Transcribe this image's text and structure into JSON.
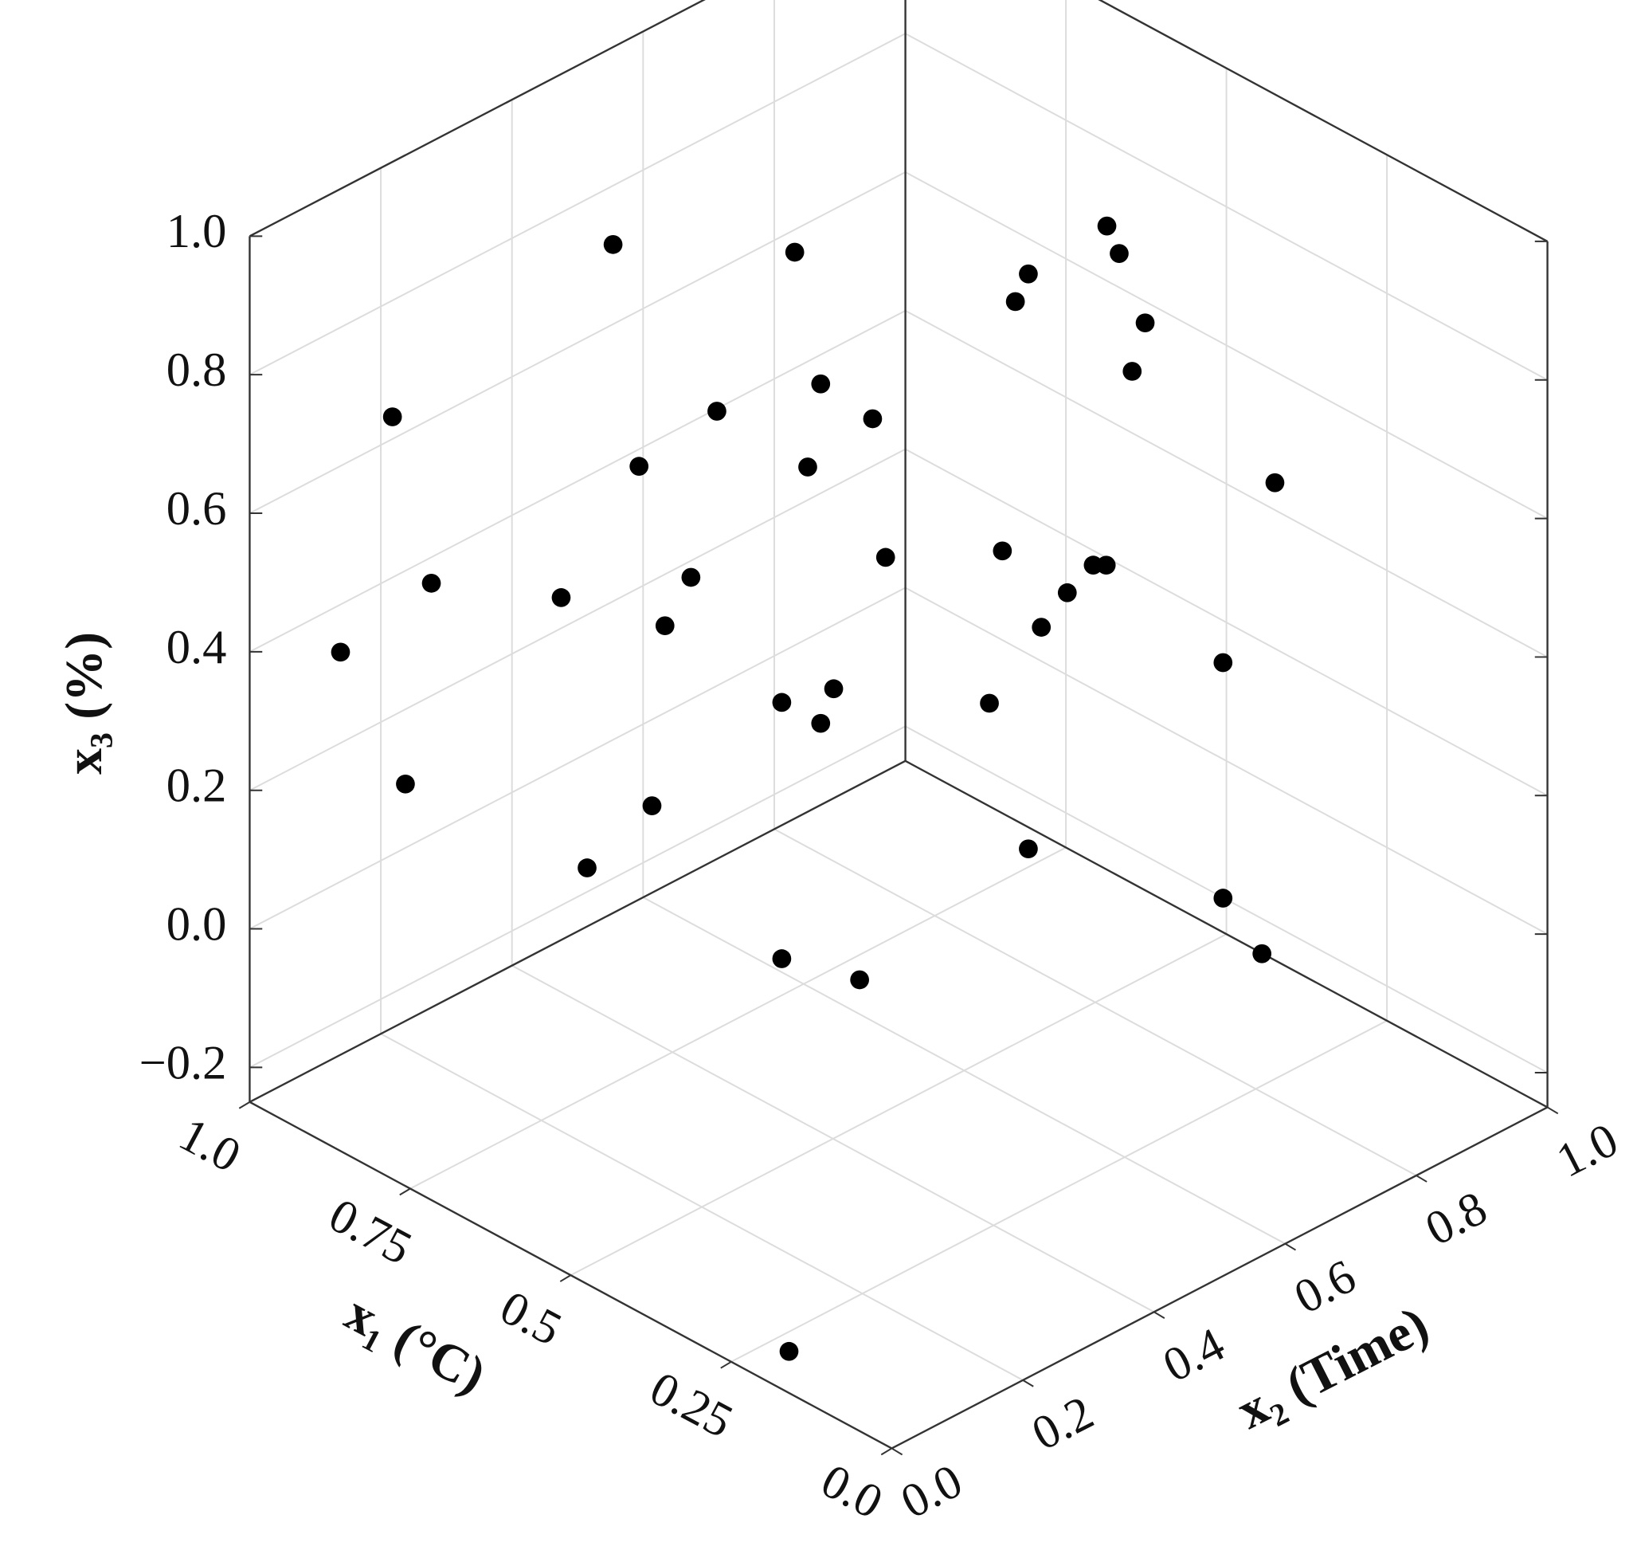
{
  "chart_data": {
    "type": "scatter3d",
    "x_label": "x₁ (°C)",
    "y_label": "x₂ (Time)",
    "z_label": "x₃ (%)",
    "xlim": [
      0,
      1
    ],
    "ylim": [
      0,
      1
    ],
    "zlim": [
      -0.25,
      1.0
    ],
    "xticks": [
      {
        "value": 0,
        "label": "0.0"
      },
      0.25,
      0.5,
      0.75,
      {
        "value": 1,
        "label": "1.0"
      }
    ],
    "yticks": [
      {
        "value": 0,
        "label": "0.0"
      },
      0.2,
      0.4,
      0.6,
      0.8,
      {
        "value": 1,
        "label": "1.0"
      }
    ],
    "zticks": [
      {
        "value": -0.2,
        "label": "−0.2"
      },
      {
        "value": 0,
        "label": "0.0"
      },
      0.2,
      0.4,
      0.6,
      0.8,
      {
        "value": 1,
        "label": "1.0"
      }
    ],
    "grid": true,
    "color": "#000000",
    "x": [
      0.72,
      0.58,
      0.39,
      0.33,
      0.4,
      0.41,
      0.31,
      0.32,
      0.56,
      0.64,
      0.89,
      0.52,
      0.7,
      0.57,
      0.21,
      0.51,
      0.42,
      0.35,
      0.34,
      0.66,
      0.37,
      0.86,
      0.76,
      0.39,
      0.68,
      0.93,
      0.25,
      0.55,
      0.59,
      0.43,
      0.56,
      0.88,
      0.69,
      0.4,
      0.74,
      0.25,
      0.59,
      0.53,
      0.22,
      0.16
    ],
    "y": [
      0.28,
      0.42,
      0.71,
      0.67,
      0.6,
      0.59,
      0.69,
      0.68,
      0.44,
      0.36,
      0.11,
      0.48,
      0.3,
      0.43,
      0.79,
      0.49,
      0.58,
      0.65,
      0.66,
      0.34,
      0.63,
      0.14,
      0.24,
      0.61,
      0.32,
      0.07,
      0.75,
      0.45,
      0.41,
      0.57,
      0.44,
      0.12,
      0.31,
      0.6,
      0.26,
      0.75,
      0.41,
      0.47,
      0.78,
      0.0
    ],
    "z": [
      0.99,
      0.98,
      0.97,
      0.98,
      0.95,
      0.91,
      0.88,
      0.81,
      0.79,
      0.75,
      0.74,
      0.74,
      0.67,
      0.67,
      0.65,
      0.54,
      0.55,
      0.53,
      0.53,
      0.51,
      0.49,
      0.5,
      0.48,
      0.44,
      0.44,
      0.4,
      0.39,
      0.35,
      0.33,
      0.33,
      0.3,
      0.21,
      0.18,
      0.12,
      0.09,
      0.05,
      -0.04,
      -0.07,
      -0.03,
      -0.19
    ]
  }
}
